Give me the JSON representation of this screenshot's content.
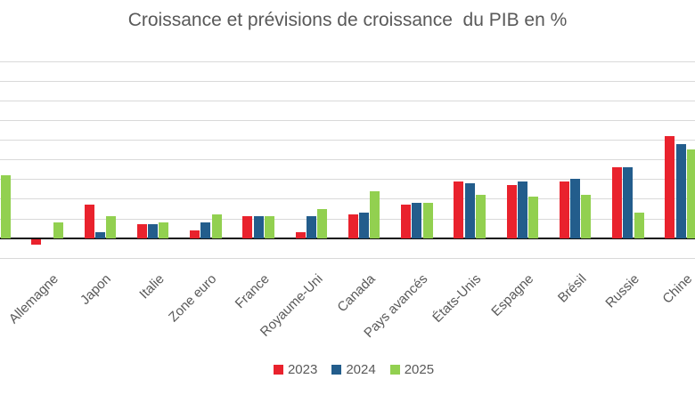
{
  "chart_data": {
    "type": "bar",
    "title": "Croissance et prévisions de croissance  du PIB en %",
    "categories": [
      "",
      "Allemagne",
      "Japon",
      "Italie",
      "Zone euro",
      "France",
      "Royaume-Uni",
      "Canada",
      "Pays avancés",
      "États-Unis",
      "Espagne",
      "Brésil",
      "Russie",
      "Chine"
    ],
    "series": [
      {
        "name": "2023",
        "color": "#e9222d",
        "values": [
          null,
          -0.3,
          1.7,
          0.7,
          0.4,
          1.1,
          0.3,
          1.2,
          1.7,
          2.9,
          2.7,
          2.9,
          3.6,
          5.2
        ]
      },
      {
        "name": "2024",
        "color": "#235d8c",
        "values": [
          null,
          0.0,
          0.3,
          0.7,
          0.8,
          1.1,
          1.1,
          1.3,
          1.8,
          2.8,
          2.9,
          3.0,
          3.6,
          4.8
        ]
      },
      {
        "name": "2025",
        "color": "#92d050",
        "values": [
          3.2,
          0.8,
          1.1,
          0.8,
          1.2,
          1.1,
          1.5,
          2.4,
          1.8,
          2.2,
          2.1,
          2.2,
          1.3,
          4.5
        ]
      }
    ],
    "xlabel": "",
    "ylabel": "",
    "ylim": [
      -1,
      9
    ],
    "gridline_step": 1,
    "grid": "on",
    "legend_position": "bottom",
    "legend": [
      "2023",
      "2024",
      "2025"
    ]
  },
  "palette": {
    "text_gray": "#595959",
    "gridline": "#d9d9d9",
    "axis": "#111111",
    "background": "#ffffff"
  }
}
